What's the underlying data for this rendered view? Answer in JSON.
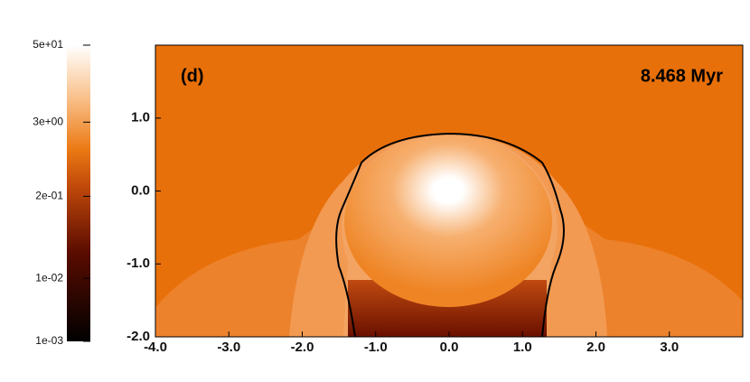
{
  "chart_data": {
    "type": "image",
    "panel_label": "(d)",
    "annotation": "8.468 Myr",
    "xlim": [
      -4,
      4
    ],
    "ylim": [
      -2,
      2
    ],
    "xticks": [
      {
        "value": -4,
        "label": "-4.0"
      },
      {
        "value": -3,
        "label": "-3.0"
      },
      {
        "value": -2,
        "label": "-2.0"
      },
      {
        "value": -1,
        "label": "-1.0"
      },
      {
        "value": 0,
        "label": "0.0"
      },
      {
        "value": 1,
        "label": "1.0"
      },
      {
        "value": 2,
        "label": "2.0"
      },
      {
        "value": 3,
        "label": "3.0"
      }
    ],
    "yticks": [
      {
        "value": -2,
        "label": "-2.0"
      },
      {
        "value": -1,
        "label": "-1.0"
      },
      {
        "value": 0,
        "label": "0.0"
      },
      {
        "value": 1,
        "label": "1.0"
      }
    ],
    "colorbar": {
      "lim": [
        0.001,
        50
      ],
      "log": true,
      "ticks": [
        {
          "value": 0.001,
          "label": "1e-03"
        },
        {
          "value": 0.01,
          "label": "1e-02"
        },
        {
          "value": 0.2,
          "label": "2e-01"
        },
        {
          "value": 3,
          "label": "3e+00"
        },
        {
          "value": 50,
          "label": "5e+01"
        }
      ]
    }
  }
}
